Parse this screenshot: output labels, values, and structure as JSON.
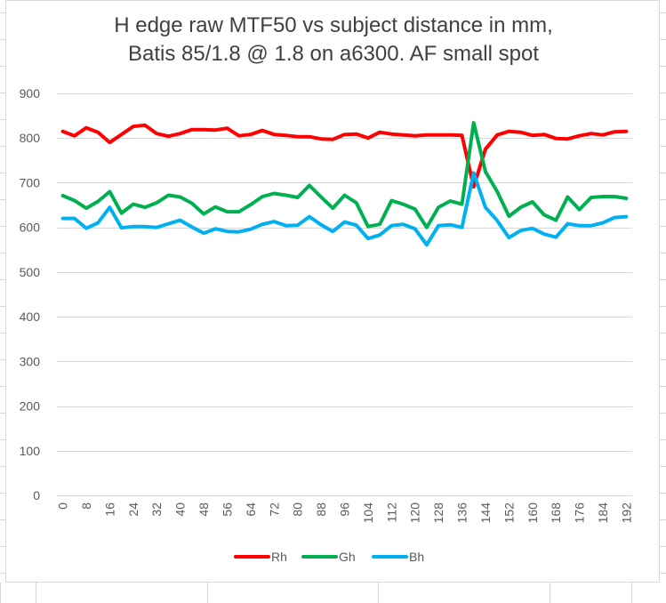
{
  "chart_data": {
    "type": "line",
    "title_lines": [
      "H edge raw MTF50 vs subject distance in mm,",
      "Batis 85/1.8 @ 1.8 on a6300. AF small spot"
    ],
    "x": [
      0,
      4,
      8,
      12,
      16,
      20,
      24,
      28,
      32,
      36,
      40,
      44,
      48,
      52,
      56,
      60,
      64,
      68,
      72,
      76,
      80,
      84,
      88,
      92,
      96,
      100,
      104,
      108,
      112,
      116,
      120,
      124,
      128,
      132,
      136,
      140,
      144,
      148,
      152,
      156,
      160,
      164,
      168,
      172,
      176,
      180,
      184,
      188,
      192
    ],
    "x_tick_labels": [
      "0",
      "8",
      "16",
      "24",
      "32",
      "40",
      "48",
      "56",
      "64",
      "72",
      "80",
      "88",
      "96",
      "104",
      "112",
      "120",
      "128",
      "136",
      "144",
      "152",
      "160",
      "168",
      "176",
      "184",
      "192"
    ],
    "ylim": [
      0,
      900
    ],
    "y_ticks": [
      0,
      100,
      200,
      300,
      400,
      500,
      600,
      700,
      800,
      900
    ],
    "grid": true,
    "legend_position": "bottom",
    "series": [
      {
        "name": "Rh",
        "color": "#ff0000",
        "values": [
          815,
          805,
          823,
          813,
          790,
          808,
          826,
          829,
          810,
          804,
          810,
          819,
          819,
          818,
          822,
          805,
          808,
          817,
          808,
          806,
          803,
          803,
          798,
          797,
          808,
          809,
          800,
          813,
          809,
          807,
          805,
          807,
          807,
          807,
          806,
          691,
          775,
          807,
          815,
          813,
          806,
          808,
          799,
          798,
          805,
          810,
          807,
          814,
          815
        ]
      },
      {
        "name": "Gh",
        "color": "#00b050",
        "values": [
          671,
          660,
          643,
          658,
          680,
          632,
          652,
          645,
          655,
          672,
          668,
          654,
          630,
          646,
          635,
          635,
          651,
          669,
          676,
          672,
          667,
          694,
          668,
          643,
          672,
          655,
          602,
          607,
          660,
          652,
          641,
          600,
          645,
          659,
          652,
          834,
          725,
          680,
          625,
          645,
          657,
          628,
          616,
          668,
          640,
          667,
          669,
          669,
          665
        ]
      },
      {
        "name": "Bh",
        "color": "#00b0f0",
        "values": [
          620,
          620,
          598,
          610,
          645,
          599,
          602,
          602,
          600,
          608,
          616,
          601,
          587,
          597,
          591,
          590,
          596,
          607,
          613,
          604,
          605,
          624,
          606,
          591,
          612,
          605,
          575,
          583,
          604,
          607,
          597,
          561,
          604,
          606,
          600,
          722,
          645,
          615,
          577,
          593,
          598,
          585,
          578,
          608,
          604,
          604,
          610,
          622,
          624
        ]
      }
    ]
  }
}
